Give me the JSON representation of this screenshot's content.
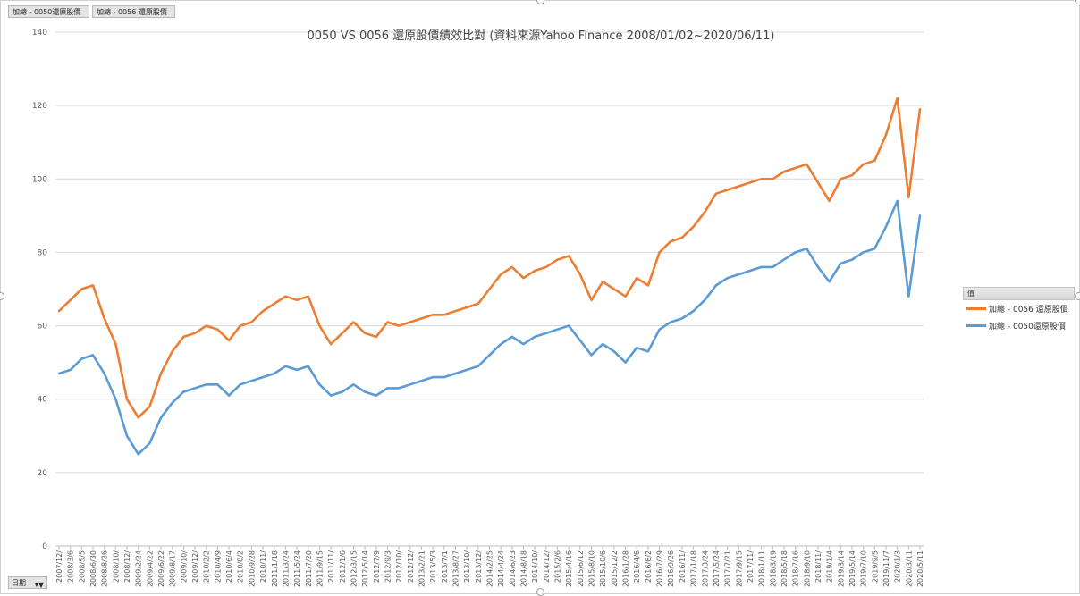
{
  "field_buttons": {
    "value_0050": "加總 - 0050還原股價",
    "value_0056": "加總 - 0056 還原股價",
    "axis_field": "日期"
  },
  "legend": {
    "header": "值",
    "items": [
      {
        "label": "加總 - 0056 還原股價",
        "color": "#ED7D31"
      },
      {
        "label": "加總 - 0050還原股價",
        "color": "#5B9BD5"
      }
    ]
  },
  "chart_data": {
    "type": "line",
    "title": "0050 VS 0056 還原股價績效比對 (資料來源Yahoo Finance 2008/01/02~2020/06/11)",
    "ylim": [
      0,
      140
    ],
    "yticks": [
      0,
      20,
      40,
      60,
      80,
      100,
      120,
      140
    ],
    "gridlines": true,
    "legend_position": "right",
    "x": [
      "2007/12/",
      "2008/3/6",
      "2008/5/5",
      "2008/6/30",
      "2008/8/26",
      "2008/10/",
      "2008/12/",
      "2009/2/24",
      "2009/4/22",
      "2009/6/22",
      "2009/8/17",
      "2009/10/",
      "2009/12/",
      "2010/2/2",
      "2010/4/9",
      "2010/6/4",
      "2010/8/2",
      "2010/9/28",
      "2010/11/",
      "2011/1/18",
      "2011/3/24",
      "2011/5/24",
      "2011/7/20",
      "2011/9/15",
      "2011/11/",
      "2012/1/6",
      "2012/3/15",
      "2012/5/14",
      "2012/7/9",
      "2012/9/3",
      "2012/10/",
      "2012/12/",
      "2013/2/21",
      "2013/5/3",
      "2013/7/1",
      "2013/8/27",
      "2013/10/",
      "2013/12/",
      "2014/2/25",
      "2014/4/24",
      "2014/6/23",
      "2014/8/18",
      "2014/10/",
      "2014/12/",
      "2015/2/6",
      "2015/4/16",
      "2015/6/12",
      "2015/8/10",
      "2015/10/6",
      "2015/12/2",
      "2016/1/28",
      "2016/4/6",
      "2016/6/2",
      "2016/7/29",
      "2016/9/26",
      "2016/11/",
      "2017/1/18",
      "2017/3/24",
      "2017/5/24",
      "2017/7/21",
      "2017/9/15",
      "2017/11/",
      "2018/1/11",
      "2018/3/19",
      "2018/5/18",
      "2018/7/16",
      "2018/9/10",
      "2018/11/",
      "2019/1/4",
      "2019/3/14",
      "2019/5/14",
      "2019/7/10",
      "2019/9/5",
      "2019/11/7",
      "2020/1/3",
      "2020/3/11",
      "2020/5/11"
    ],
    "series": [
      {
        "name": "加總 - 0056 還原股價",
        "color": "#ED7D31",
        "values": [
          64,
          67,
          70,
          71,
          62,
          55,
          40,
          35,
          38,
          47,
          53,
          57,
          58,
          60,
          59,
          56,
          60,
          61,
          64,
          66,
          68,
          67,
          68,
          60,
          55,
          58,
          61,
          58,
          57,
          61,
          60,
          61,
          62,
          63,
          63,
          64,
          65,
          66,
          70,
          74,
          76,
          73,
          75,
          76,
          78,
          79,
          74,
          67,
          72,
          70,
          68,
          73,
          71,
          80,
          83,
          84,
          87,
          91,
          96,
          97,
          98,
          99,
          100,
          100,
          102,
          103,
          104,
          99,
          94,
          100,
          101,
          104,
          105,
          112,
          122,
          95,
          119
        ]
      },
      {
        "name": "加總 - 0050還原股價",
        "color": "#5B9BD5",
        "values": [
          47,
          48,
          51,
          52,
          47,
          40,
          30,
          25,
          28,
          35,
          39,
          42,
          43,
          44,
          44,
          41,
          44,
          45,
          46,
          47,
          49,
          48,
          49,
          44,
          41,
          42,
          44,
          42,
          41,
          43,
          43,
          44,
          45,
          46,
          46,
          47,
          48,
          49,
          52,
          55,
          57,
          55,
          57,
          58,
          59,
          60,
          56,
          52,
          55,
          53,
          50,
          54,
          53,
          59,
          61,
          62,
          64,
          67,
          71,
          73,
          74,
          75,
          76,
          76,
          78,
          80,
          81,
          76,
          72,
          77,
          78,
          80,
          81,
          87,
          94,
          68,
          90
        ]
      }
    ]
  }
}
